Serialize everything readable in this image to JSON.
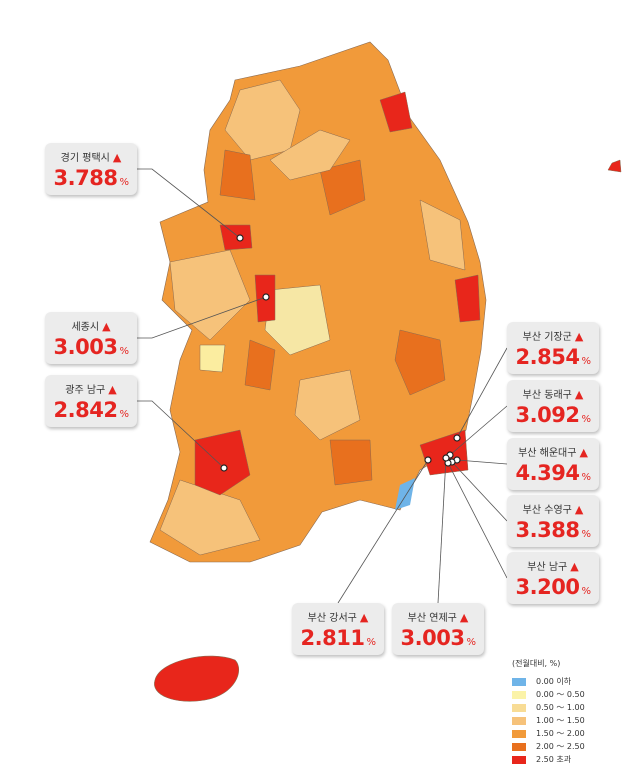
{
  "unit": "%",
  "callouts": [
    {
      "name": "경기 평택시",
      "value": "3.788"
    },
    {
      "name": "세종시",
      "value": "3.003"
    },
    {
      "name": "광주 남구",
      "value": "2.842"
    },
    {
      "name": "부산 기장군",
      "value": "2.854"
    },
    {
      "name": "부산 동래구",
      "value": "3.092"
    },
    {
      "name": "부산 해운대구",
      "value": "4.394"
    },
    {
      "name": "부산 수영구",
      "value": "3.388"
    },
    {
      "name": "부산 남구",
      "value": "3.200"
    },
    {
      "name": "부산 강서구",
      "value": "2.811"
    },
    {
      "name": "부산 연제구",
      "value": "3.003"
    }
  ],
  "legend": {
    "title": "(전월대비, %)",
    "items": [
      {
        "label": "0.00 이하",
        "color": "#6fb4e8"
      },
      {
        "label": "0.00 ～ 0.50",
        "color": "#fbf3a8"
      },
      {
        "label": "0.50 ～ 1.00",
        "color": "#f8dc95"
      },
      {
        "label": "1.00 ～ 1.50",
        "color": "#f6c27a"
      },
      {
        "label": "1.50 ～ 2.00",
        "color": "#f19a3a"
      },
      {
        "label": "2.00 ～ 2.50",
        "color": "#e8701e"
      },
      {
        "label": "2.50 초과",
        "color": "#e8261b"
      }
    ]
  }
}
